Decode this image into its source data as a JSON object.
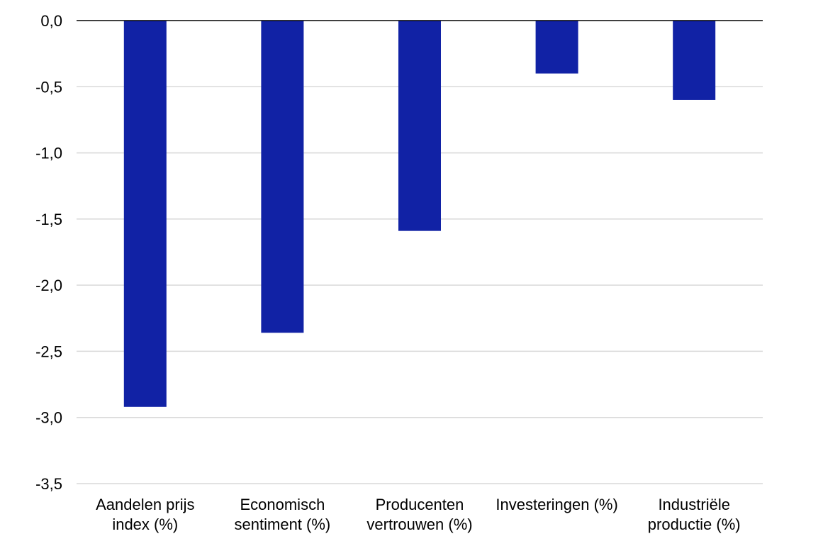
{
  "chart_data": {
    "type": "bar",
    "title": "",
    "xlabel": "",
    "ylabel": "",
    "categories": [
      [
        "Aandelen prijs",
        "index (%)"
      ],
      [
        "Economisch",
        "sentiment (%)"
      ],
      [
        "Producenten",
        "vertrouwen (%)"
      ],
      [
        "Investeringen (%)"
      ],
      [
        "Industriële",
        "productie (%)"
      ]
    ],
    "series": [
      {
        "values": [
          -2.92,
          -2.36,
          -1.59,
          -0.4,
          -0.6
        ],
        "color": "#1122A5"
      }
    ],
    "ylim": [
      -3.5,
      0.0
    ],
    "yticks": [
      0.0,
      -0.5,
      -1.0,
      -1.5,
      -2.0,
      -2.5,
      -3.0,
      -3.5
    ],
    "ytick_labels": [
      "0,0",
      "-0,5",
      "-1,0",
      "-1,5",
      "-2,0",
      "-2,5",
      "-3,0",
      "-3,5"
    ],
    "grid": true,
    "grid_color": "#D9D9D9",
    "zero_line_color": "#000000",
    "legend": "none"
  }
}
